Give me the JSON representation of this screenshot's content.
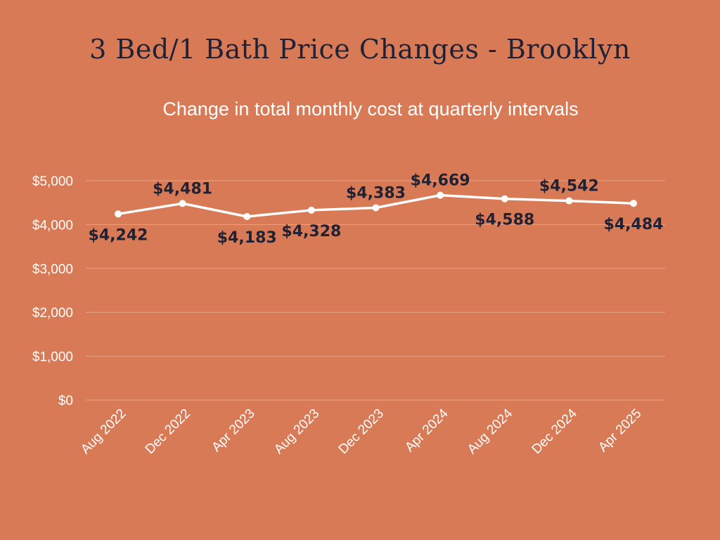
{
  "chart_data": {
    "type": "line",
    "title": "3 Bed/1 Bath Price Changes - Brooklyn",
    "subtitle": "Change in total monthly cost at quarterly intervals",
    "categories": [
      "Aug 2022",
      "Dec 2022",
      "Apr 2023",
      "Aug 2023",
      "Dec 2023",
      "Apr 2024",
      "Aug 2024",
      "Dec 2024",
      "Apr 2025"
    ],
    "series": [
      {
        "name": "Total monthly cost",
        "values": [
          4242,
          4481,
          4183,
          4328,
          4383,
          4669,
          4588,
          4542,
          4484
        ],
        "labels": [
          "$4,242",
          "$4,481",
          "$4,183",
          "$4,328",
          "$4,383",
          "$4,669",
          "$4,588",
          "$4,542",
          "$4,484"
        ],
        "label_position": [
          "below",
          "above",
          "below",
          "below",
          "above",
          "above",
          "below",
          "above",
          "below"
        ]
      }
    ],
    "y_ticks": [
      0,
      1000,
      2000,
      3000,
      4000,
      5000
    ],
    "y_tick_labels": [
      "$0",
      "$1,000",
      "$2,000",
      "$3,000",
      "$4,000",
      "$5,000"
    ],
    "ylim": [
      0,
      5000
    ],
    "xlabel": "",
    "ylabel": "",
    "grid": true,
    "legend": "none",
    "colors": {
      "background": "#D97A56",
      "line": "#FFFFFF",
      "label": "#1F2235",
      "grid": "#E8A488"
    }
  }
}
